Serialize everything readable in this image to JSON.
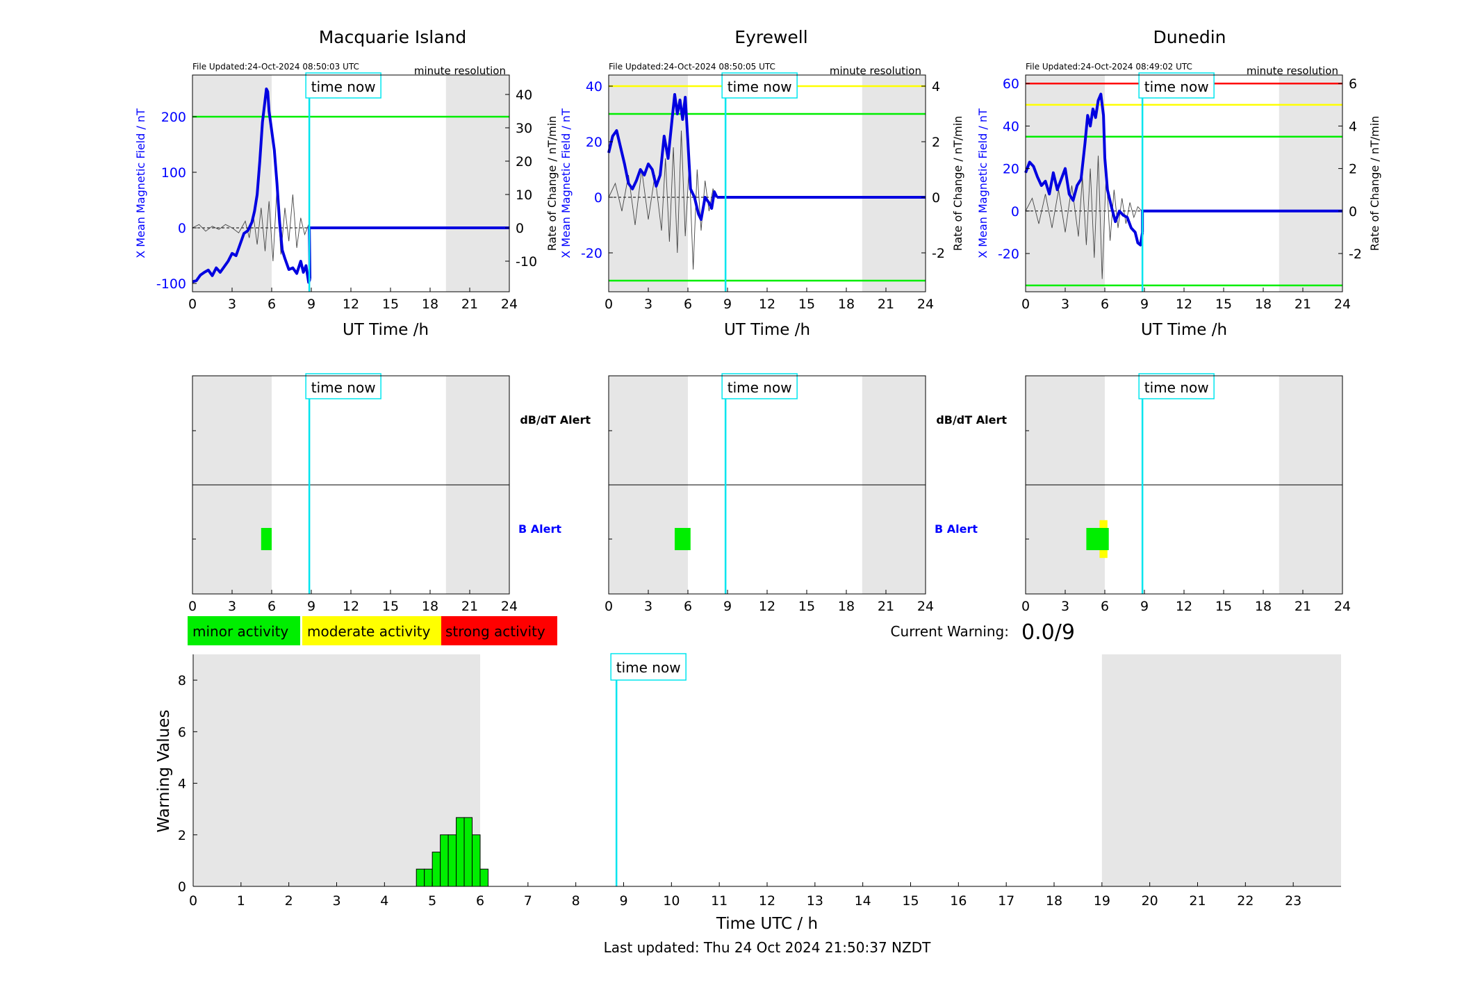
{
  "colors": {
    "night_shade": "#e6e6e6",
    "time_now_line": "#00e5ee",
    "field_line": "#0000e0",
    "rate_line": "#444444",
    "threshold_green": "#00ee00",
    "threshold_yellow": "#ffff00",
    "threshold_red": "#ff0000",
    "b_alert_label": "#0000ff",
    "x_axis_label_color": "#0000ff"
  },
  "common": {
    "x_ticks": [
      "0",
      "3",
      "6",
      "9",
      "12",
      "15",
      "18",
      "21",
      "24"
    ],
    "x_label": "UT Time /h",
    "left_y_label": "X Mean Magnetic Field / nT",
    "right_y_label": "Rate of Change / nT/min",
    "resolution_label": "minute resolution",
    "time_now_label": "time now",
    "time_now_hour": 8.85,
    "night_ranges_h": [
      [
        0,
        6
      ],
      [
        19.2,
        24
      ]
    ],
    "alert_labels": {
      "dbdt": "dB/dT Alert",
      "b": "B Alert"
    }
  },
  "legend": {
    "minor": "minor activity",
    "moderate": "moderate activity",
    "strong": "strong activity"
  },
  "current_warning": {
    "label": "Current Warning:",
    "value": "0.0/9"
  },
  "footer": {
    "last_updated": "Last updated: Thu 24 Oct 2024 21:50:37 NZDT"
  },
  "chart_data": [
    {
      "type": "line",
      "title": "Macquarie Island",
      "file_updated": "File Updated:24-Oct-2024 08:50:03 UTC",
      "xlim": [
        0,
        24
      ],
      "ylim_left": [
        -115,
        275
      ],
      "ylim_right": [
        -19.17,
        45.83
      ],
      "left_ticks": [
        -100,
        0,
        100,
        200
      ],
      "left_tick_labels": [
        "-100",
        "0",
        "100",
        "200"
      ],
      "right_ticks": [
        -10,
        0,
        10,
        20,
        30,
        40
      ],
      "right_tick_labels": [
        "-10",
        "0",
        "10",
        "20",
        "30",
        "40"
      ],
      "thresholds": [
        {
          "value": 200,
          "color": "green"
        }
      ],
      "field_series": {
        "x": [
          0,
          0.3,
          0.6,
          0.9,
          1.2,
          1.5,
          1.8,
          2.1,
          2.4,
          2.7,
          3.0,
          3.3,
          3.6,
          3.9,
          4.2,
          4.5,
          4.7,
          4.9,
          5.1,
          5.3,
          5.5,
          5.6,
          5.7,
          5.8,
          6.0,
          6.2,
          6.4,
          6.6,
          6.8,
          7.0,
          7.3,
          7.6,
          7.9,
          8.2,
          8.4,
          8.6,
          8.8,
          8.9
        ],
        "y": [
          -97,
          -95,
          -85,
          -80,
          -76,
          -86,
          -72,
          -80,
          -70,
          -60,
          -46,
          -50,
          -30,
          -10,
          -5,
          10,
          30,
          60,
          120,
          190,
          230,
          250,
          245,
          210,
          175,
          140,
          80,
          10,
          -40,
          -55,
          -75,
          -72,
          -82,
          -60,
          -80,
          -68,
          -98,
          -92
        ]
      },
      "field_after_now": 0,
      "rate_series": {
        "x": [
          0,
          0.5,
          1,
          1.5,
          2,
          2.5,
          3,
          3.5,
          4,
          4.3,
          4.6,
          4.9,
          5.2,
          5.5,
          5.8,
          6.1,
          6.4,
          6.7,
          7.0,
          7.3,
          7.6,
          7.9,
          8.2,
          8.5,
          8.8
        ],
        "y": [
          0,
          1,
          -1,
          0.5,
          -0.5,
          1,
          0,
          -1.5,
          2,
          -3,
          4,
          -5,
          6,
          -7,
          8,
          -10,
          12,
          -8,
          6,
          -4,
          10,
          -6,
          3,
          -2,
          1
        ]
      },
      "alerts": {
        "b": [
          {
            "start": 5.2,
            "end": 6.0,
            "level": "minor",
            "half_height": 0.5
          }
        ],
        "dbdt": []
      }
    },
    {
      "type": "line",
      "title": "Eyrewell",
      "file_updated": "File Updated:24-Oct-2024 08:50:05 UTC",
      "xlim": [
        0,
        24
      ],
      "ylim_left": [
        -34,
        44
      ],
      "ylim_right": [
        -3.4,
        4.4
      ],
      "left_ticks": [
        -20,
        0,
        20,
        40
      ],
      "left_tick_labels": [
        "-20",
        "0",
        "20",
        "40"
      ],
      "right_ticks": [
        -2,
        0,
        2,
        4
      ],
      "right_tick_labels": [
        "-2",
        "0",
        "2",
        "4"
      ],
      "thresholds": [
        {
          "value": 40,
          "color": "yellow"
        },
        {
          "value": 30,
          "color": "green"
        },
        {
          "value": -30,
          "color": "green"
        }
      ],
      "field_series": {
        "x": [
          0,
          0.3,
          0.6,
          0.9,
          1.2,
          1.5,
          1.8,
          2.1,
          2.4,
          2.7,
          3.0,
          3.3,
          3.6,
          3.9,
          4.2,
          4.5,
          4.8,
          5.0,
          5.2,
          5.4,
          5.6,
          5.8,
          6.0,
          6.2,
          6.5,
          6.8,
          7.0,
          7.3,
          7.6,
          7.8,
          8.0,
          8.2
        ],
        "y": [
          16,
          22,
          24,
          18,
          12,
          5,
          3,
          6,
          10,
          8,
          12,
          10,
          4,
          8,
          22,
          14,
          28,
          37,
          30,
          35,
          28,
          36,
          20,
          3,
          0,
          -6,
          -8,
          0,
          -2,
          -4,
          2,
          0
        ]
      },
      "field_after_now": 0,
      "rate_series": {
        "x": [
          0,
          0.5,
          1,
          1.5,
          2,
          2.5,
          3,
          3.5,
          4,
          4.3,
          4.6,
          4.9,
          5.2,
          5.5,
          5.8,
          6.1,
          6.4,
          6.7,
          7.0,
          7.3,
          7.6,
          7.9,
          8.2
        ],
        "y": [
          0,
          0.5,
          -0.5,
          0.8,
          -1,
          1,
          -0.8,
          0.8,
          -1.2,
          1.4,
          -1.6,
          1.8,
          -2,
          2.4,
          -1.4,
          1.2,
          -2.6,
          1.0,
          -1.2,
          0.6,
          -0.5,
          0.3,
          0
        ]
      },
      "alerts": {
        "b": [
          {
            "start": 5.0,
            "end": 6.2,
            "level": "minor",
            "half_height": 0.5
          }
        ],
        "dbdt": []
      }
    },
    {
      "type": "line",
      "title": "Dunedin",
      "file_updated": "File Updated:24-Oct-2024 08:49:02 UTC",
      "xlim": [
        0,
        24
      ],
      "ylim_left": [
        -38,
        64
      ],
      "ylim_right": [
        -3.8,
        6.4
      ],
      "left_ticks": [
        -20,
        0,
        20,
        40,
        60
      ],
      "left_tick_labels": [
        "-20",
        "0",
        "20",
        "40",
        "60"
      ],
      "right_ticks": [
        -2,
        0,
        2,
        4,
        6
      ],
      "right_tick_labels": [
        "-2",
        "0",
        "2",
        "4",
        "6"
      ],
      "thresholds": [
        {
          "value": 60,
          "color": "red"
        },
        {
          "value": 50,
          "color": "yellow"
        },
        {
          "value": 35,
          "color": "green"
        },
        {
          "value": -35,
          "color": "green"
        }
      ],
      "field_series": {
        "x": [
          0,
          0.3,
          0.6,
          0.9,
          1.2,
          1.5,
          1.8,
          2.1,
          2.4,
          2.7,
          3.0,
          3.3,
          3.6,
          3.9,
          4.2,
          4.5,
          4.7,
          4.9,
          5.1,
          5.3,
          5.5,
          5.7,
          5.9,
          6.0,
          6.2,
          6.5,
          6.8,
          7.1,
          7.4,
          7.7,
          8.0,
          8.3,
          8.5,
          8.7,
          8.85
        ],
        "y": [
          18,
          23,
          21,
          16,
          12,
          14,
          8,
          18,
          10,
          15,
          20,
          8,
          5,
          12,
          15,
          32,
          45,
          40,
          48,
          44,
          52,
          55,
          45,
          25,
          10,
          2,
          -5,
          0,
          -2,
          -3,
          -8,
          -10,
          -15,
          -16,
          -10
        ]
      },
      "field_after_now": 0,
      "rate_series": {
        "x": [
          0,
          0.5,
          1,
          1.5,
          2,
          2.5,
          3,
          3.5,
          4,
          4.3,
          4.6,
          4.9,
          5.2,
          5.5,
          5.8,
          6.1,
          6.4,
          6.7,
          7.0,
          7.3,
          7.6,
          7.9,
          8.2,
          8.5,
          8.8
        ],
        "y": [
          0,
          0.6,
          -0.6,
          0.8,
          -0.8,
          1.0,
          -1.0,
          1.2,
          -1.2,
          1.6,
          -1.6,
          2.0,
          -2.2,
          2.6,
          -3.2,
          1.8,
          -1.4,
          1.0,
          -0.8,
          0.6,
          -0.6,
          0.4,
          -0.3,
          0.2,
          0
        ]
      },
      "alerts": {
        "b": [
          {
            "start": 5.6,
            "end": 6.2,
            "level": "moderate",
            "half_height": 0.85
          },
          {
            "start": 4.6,
            "end": 6.3,
            "level": "minor",
            "half_height": 0.5
          }
        ],
        "dbdt": []
      }
    },
    {
      "type": "bar",
      "xlabel": "Time UTC / h",
      "ylabel": "Warning Values",
      "xlim": [
        0,
        24
      ],
      "ylim": [
        0,
        9
      ],
      "x_tick_labels": [
        "0",
        "1",
        "2",
        "3",
        "4",
        "5",
        "6",
        "7",
        "8",
        "9",
        "10",
        "11",
        "12",
        "13",
        "14",
        "15",
        "16",
        "17",
        "18",
        "19",
        "20",
        "21",
        "22",
        "23"
      ],
      "y_tick_labels": [
        "0",
        "2",
        "4",
        "6",
        "8"
      ],
      "y_ticks": [
        0,
        2,
        4,
        6,
        8
      ],
      "bar_width_h": 0.1667,
      "bars": [
        {
          "x": 4.75,
          "value": 0.67
        },
        {
          "x": 4.9167,
          "value": 0.67
        },
        {
          "x": 5.0833,
          "value": 1.33
        },
        {
          "x": 5.25,
          "value": 2.0
        },
        {
          "x": 5.4167,
          "value": 2.0
        },
        {
          "x": 5.5833,
          "value": 2.67
        },
        {
          "x": 5.75,
          "value": 2.67
        },
        {
          "x": 5.9167,
          "value": 2.0
        },
        {
          "x": 6.0833,
          "value": 0.67
        }
      ],
      "night_ranges_h": [
        [
          0,
          6
        ],
        [
          19,
          24
        ]
      ]
    }
  ]
}
